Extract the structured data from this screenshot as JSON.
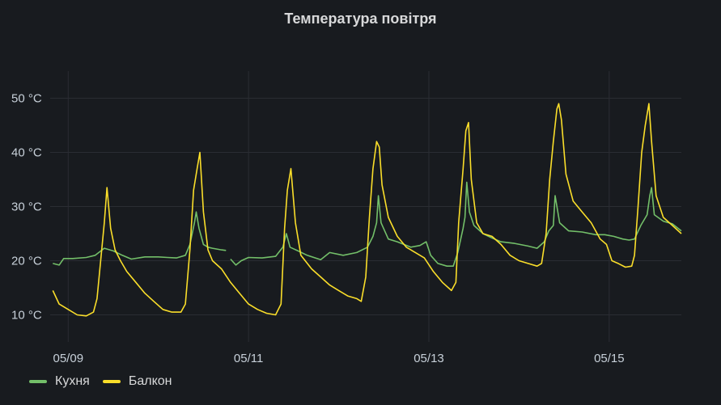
{
  "panel": {
    "title": "Температура повітря"
  },
  "chart_data": {
    "type": "line",
    "title": "Температура повітря",
    "xlabel": "",
    "ylabel": "",
    "x_unit": "days (May)",
    "xlim": [
      8.8,
      15.8
    ],
    "ylim": [
      5,
      55
    ],
    "y_ticks": [
      10,
      20,
      30,
      40,
      50
    ],
    "y_tick_labels": [
      "10 °C",
      "20 °C",
      "30 °C",
      "40 °C",
      "50 °C"
    ],
    "x_ticks": [
      9,
      11,
      13,
      15
    ],
    "x_tick_labels": [
      "05/09",
      "05/11",
      "05/13",
      "05/15"
    ],
    "grid": true,
    "legend_position": "bottom-left",
    "series": [
      {
        "name": "Кухня",
        "color": "#73bf69",
        "points": [
          [
            8.83,
            19.5
          ],
          [
            8.9,
            19.2
          ],
          [
            8.95,
            20.4
          ],
          [
            9.05,
            20.4
          ],
          [
            9.2,
            20.6
          ],
          [
            9.3,
            21.0
          ],
          [
            9.4,
            22.3
          ],
          [
            9.5,
            21.8
          ],
          [
            9.6,
            21.0
          ],
          [
            9.7,
            20.3
          ],
          [
            9.85,
            20.7
          ],
          [
            10.0,
            20.7
          ],
          [
            10.1,
            20.6
          ],
          [
            10.2,
            20.5
          ],
          [
            10.3,
            21.0
          ],
          [
            10.35,
            23.0
          ],
          [
            10.4,
            27.0
          ],
          [
            10.42,
            29.0
          ],
          [
            10.45,
            26.0
          ],
          [
            10.5,
            23.0
          ],
          [
            10.55,
            22.5
          ],
          [
            10.6,
            22.3
          ],
          [
            10.7,
            22.0
          ],
          [
            10.75,
            21.9
          ],
          null,
          [
            10.8,
            20.3
          ],
          [
            10.86,
            19.2
          ],
          [
            10.92,
            20.0
          ],
          [
            11.0,
            20.6
          ],
          [
            11.15,
            20.5
          ],
          [
            11.3,
            20.8
          ],
          [
            11.38,
            22.5
          ],
          [
            11.42,
            25.0
          ],
          [
            11.46,
            22.5
          ],
          [
            11.55,
            21.8
          ],
          [
            11.65,
            21.0
          ],
          [
            11.8,
            20.2
          ],
          [
            11.9,
            21.5
          ],
          [
            12.05,
            21.0
          ],
          [
            12.2,
            21.5
          ],
          [
            12.32,
            22.5
          ],
          [
            12.38,
            24.5
          ],
          [
            12.42,
            27.0
          ],
          [
            12.44,
            32.0
          ],
          [
            12.47,
            27.0
          ],
          [
            12.55,
            24.0
          ],
          [
            12.65,
            23.5
          ],
          [
            12.8,
            22.5
          ],
          [
            12.9,
            22.8
          ],
          [
            12.97,
            23.5
          ],
          [
            13.02,
            21.0
          ],
          [
            13.1,
            19.5
          ],
          [
            13.2,
            19.0
          ],
          [
            13.27,
            19.0
          ],
          [
            13.32,
            21.5
          ],
          [
            13.38,
            26.0
          ],
          [
            13.4,
            28.0
          ],
          [
            13.42,
            34.5
          ],
          [
            13.45,
            29.0
          ],
          [
            13.5,
            26.5
          ],
          [
            13.6,
            25.0
          ],
          [
            13.7,
            24.2
          ],
          [
            13.8,
            23.5
          ],
          [
            13.95,
            23.2
          ],
          [
            14.1,
            22.7
          ],
          [
            14.2,
            22.3
          ],
          [
            14.28,
            23.5
          ],
          [
            14.33,
            25.5
          ],
          [
            14.38,
            26.5
          ],
          [
            14.4,
            32.0
          ],
          [
            14.45,
            27.0
          ],
          [
            14.55,
            25.5
          ],
          [
            14.7,
            25.3
          ],
          [
            14.85,
            24.8
          ],
          [
            14.95,
            24.8
          ],
          [
            15.05,
            24.5
          ],
          [
            15.15,
            24.0
          ],
          [
            15.22,
            23.8
          ],
          [
            15.28,
            24.0
          ],
          [
            15.35,
            26.5
          ],
          [
            15.42,
            28.5
          ],
          [
            15.45,
            32.0
          ],
          [
            15.47,
            33.5
          ],
          [
            15.5,
            28.5
          ],
          [
            15.6,
            27.3
          ],
          [
            15.7,
            26.8
          ],
          [
            15.8,
            25.5
          ]
        ]
      },
      {
        "name": "Балкон",
        "color": "#fade2a",
        "points": [
          [
            8.83,
            14.5
          ],
          [
            8.9,
            12.0
          ],
          [
            9.0,
            11.0
          ],
          [
            9.1,
            10.0
          ],
          [
            9.2,
            9.8
          ],
          [
            9.28,
            10.5
          ],
          [
            9.32,
            13.0
          ],
          [
            9.36,
            20.0
          ],
          [
            9.4,
            27.0
          ],
          [
            9.43,
            33.5
          ],
          [
            9.47,
            26.0
          ],
          [
            9.52,
            22.0
          ],
          [
            9.58,
            20.0
          ],
          [
            9.65,
            18.0
          ],
          [
            9.75,
            16.0
          ],
          [
            9.85,
            14.0
          ],
          [
            9.95,
            12.5
          ],
          [
            10.05,
            11.0
          ],
          [
            10.15,
            10.5
          ],
          [
            10.25,
            10.5
          ],
          [
            10.3,
            12.0
          ],
          [
            10.35,
            22.0
          ],
          [
            10.39,
            33.0
          ],
          [
            10.43,
            37.0
          ],
          [
            10.46,
            40.0
          ],
          [
            10.5,
            29.0
          ],
          [
            10.55,
            22.0
          ],
          [
            10.6,
            20.0
          ],
          [
            10.7,
            18.5
          ],
          [
            10.8,
            16.0
          ],
          [
            10.9,
            14.0
          ],
          [
            11.0,
            12.0
          ],
          [
            11.1,
            11.0
          ],
          [
            11.2,
            10.3
          ],
          [
            11.3,
            10.0
          ],
          [
            11.36,
            12.0
          ],
          [
            11.4,
            26.0
          ],
          [
            11.43,
            33.0
          ],
          [
            11.47,
            37.0
          ],
          [
            11.52,
            27.0
          ],
          [
            11.58,
            21.0
          ],
          [
            11.7,
            18.5
          ],
          [
            11.8,
            17.0
          ],
          [
            11.9,
            15.5
          ],
          [
            12.0,
            14.5
          ],
          [
            12.1,
            13.5
          ],
          [
            12.2,
            13.0
          ],
          [
            12.25,
            12.5
          ],
          [
            12.3,
            17.0
          ],
          [
            12.34,
            28.0
          ],
          [
            12.38,
            37.0
          ],
          [
            12.42,
            42.0
          ],
          [
            12.45,
            41.0
          ],
          [
            12.48,
            34.0
          ],
          [
            12.55,
            28.0
          ],
          [
            12.65,
            24.5
          ],
          [
            12.75,
            22.5
          ],
          [
            12.85,
            21.5
          ],
          [
            12.95,
            20.5
          ],
          [
            13.05,
            18.0
          ],
          [
            13.15,
            16.0
          ],
          [
            13.25,
            14.5
          ],
          [
            13.3,
            16.0
          ],
          [
            13.33,
            27.0
          ],
          [
            13.38,
            37.0
          ],
          [
            13.41,
            44.0
          ],
          [
            13.44,
            45.5
          ],
          [
            13.47,
            35.0
          ],
          [
            13.53,
            27.0
          ],
          [
            13.6,
            25.0
          ],
          [
            13.7,
            24.5
          ],
          [
            13.8,
            23.0
          ],
          [
            13.9,
            21.0
          ],
          [
            14.0,
            20.0
          ],
          [
            14.1,
            19.5
          ],
          [
            14.2,
            19.0
          ],
          [
            14.25,
            19.5
          ],
          [
            14.3,
            25.0
          ],
          [
            14.34,
            35.0
          ],
          [
            14.38,
            42.0
          ],
          [
            14.42,
            48.0
          ],
          [
            14.44,
            49.0
          ],
          [
            14.47,
            46.0
          ],
          [
            14.52,
            36.0
          ],
          [
            14.6,
            31.0
          ],
          [
            14.7,
            29.0
          ],
          [
            14.8,
            27.0
          ],
          [
            14.9,
            24.0
          ],
          [
            14.97,
            23.0
          ],
          [
            15.03,
            20.0
          ],
          [
            15.1,
            19.5
          ],
          [
            15.18,
            18.8
          ],
          [
            15.25,
            19.0
          ],
          [
            15.28,
            21.0
          ],
          [
            15.32,
            30.0
          ],
          [
            15.36,
            40.0
          ],
          [
            15.4,
            45.0
          ],
          [
            15.44,
            49.0
          ],
          [
            15.47,
            42.0
          ],
          [
            15.52,
            32.0
          ],
          [
            15.6,
            28.0
          ],
          [
            15.7,
            26.5
          ],
          [
            15.8,
            25.0
          ]
        ]
      }
    ]
  }
}
